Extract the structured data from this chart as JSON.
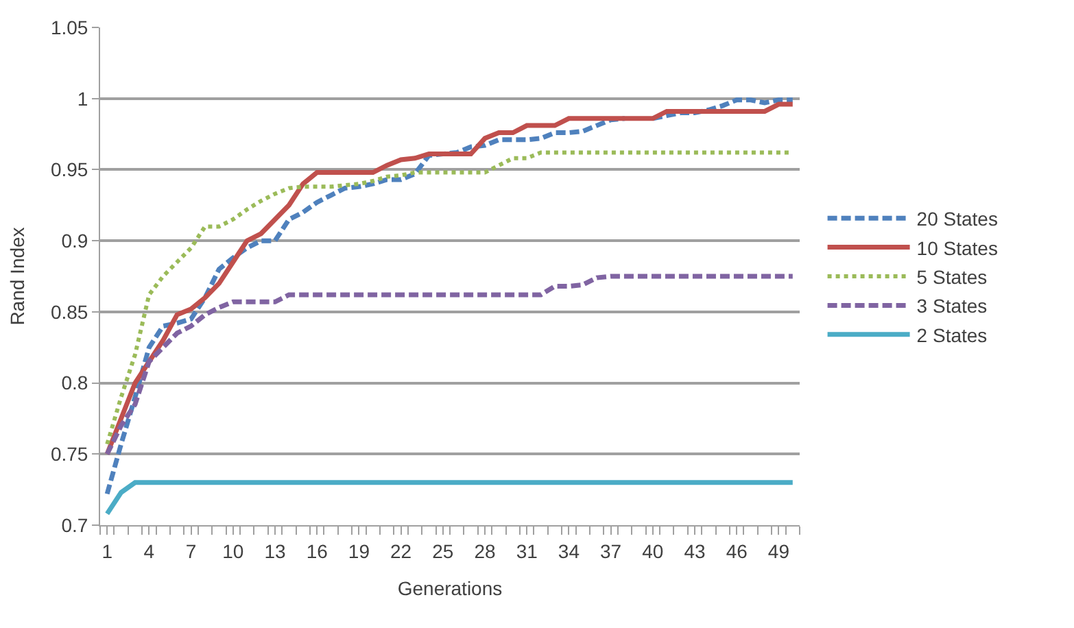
{
  "chart_data": {
    "type": "line",
    "xlabel": "Generations",
    "ylabel": "Rand Index",
    "categories": [
      "1",
      null,
      null,
      "4",
      null,
      null,
      "7",
      null,
      null,
      "10",
      null,
      null,
      "13",
      null,
      null,
      "16",
      null,
      null,
      "19",
      null,
      null,
      "22",
      null,
      null,
      "25",
      null,
      null,
      "28",
      null,
      null,
      "31",
      null,
      null,
      "34",
      null,
      null,
      "37",
      null,
      null,
      "40",
      null,
      null,
      "43",
      null,
      null,
      "46",
      null,
      null,
      "49",
      null
    ],
    "ylim": [
      0.7,
      1.05
    ],
    "yticks": [
      0.7,
      0.75,
      0.8,
      0.85,
      0.9,
      0.95,
      1,
      1.05
    ],
    "grid": "y",
    "legend": "right",
    "marker": "none",
    "series": [
      {
        "name": "20 States",
        "color": "#4f81bd",
        "line_style": "dashed",
        "values": [
          0.722,
          0.757,
          0.79,
          0.825,
          0.84,
          0.842,
          0.845,
          0.86,
          0.88,
          0.888,
          0.895,
          0.9,
          0.9,
          0.915,
          0.92,
          0.927,
          0.932,
          0.937,
          0.938,
          0.94,
          0.943,
          0.943,
          0.947,
          0.96,
          0.961,
          0.962,
          0.966,
          0.967,
          0.971,
          0.971,
          0.971,
          0.972,
          0.976,
          0.976,
          0.977,
          0.981,
          0.985,
          0.986,
          null,
          0.986,
          0.988,
          0.99,
          0.99,
          0.992,
          0.995,
          0.999,
          0.999,
          0.997,
          0.999,
          0.999
        ]
      },
      {
        "name": "10 States",
        "color": "#c0504d",
        "line_style": "solid",
        "values": [
          0.75,
          0.775,
          0.8,
          0.815,
          0.83,
          0.848,
          0.852,
          0.86,
          0.87,
          0.885,
          0.9,
          0.905,
          0.915,
          0.925,
          0.94,
          0.948,
          0.948,
          0.948,
          0.948,
          0.948,
          0.953,
          0.957,
          0.958,
          0.961,
          0.961,
          0.961,
          0.961,
          0.972,
          0.976,
          0.976,
          0.981,
          0.981,
          0.981,
          0.986,
          0.986,
          0.986,
          0.986,
          0.986,
          0.986,
          0.986,
          0.991,
          0.991,
          0.991,
          0.991,
          0.991,
          0.991,
          0.991,
          0.991,
          0.996,
          0.996
        ]
      },
      {
        "name": "5 States",
        "color": "#9bbb59",
        "line_style": "dotted",
        "values": [
          0.757,
          0.79,
          0.82,
          0.862,
          0.875,
          0.885,
          0.895,
          0.91,
          0.91,
          0.915,
          0.922,
          0.928,
          0.933,
          0.937,
          0.938,
          0.938,
          0.938,
          0.939,
          0.94,
          0.942,
          0.945,
          0.946,
          0.948,
          0.948,
          0.948,
          0.948,
          0.948,
          0.948,
          0.953,
          0.958,
          0.958,
          0.962,
          0.962,
          0.962,
          0.962,
          0.962,
          0.962,
          0.962,
          0.962,
          0.962,
          0.962,
          0.962,
          0.962,
          0.962,
          0.962,
          0.962,
          0.962,
          0.962,
          0.962,
          0.962
        ]
      },
      {
        "name": "3 States",
        "color": "#8064a2",
        "line_style": "dashed",
        "values": [
          0.75,
          0.77,
          0.785,
          0.815,
          0.825,
          0.835,
          0.84,
          0.848,
          0.853,
          0.857,
          0.857,
          0.857,
          0.857,
          0.862,
          0.862,
          0.862,
          0.862,
          0.862,
          0.862,
          0.862,
          0.862,
          0.862,
          0.862,
          0.862,
          0.862,
          0.862,
          0.862,
          0.862,
          0.862,
          0.862,
          0.862,
          0.862,
          0.868,
          0.868,
          0.869,
          0.874,
          0.875,
          0.875,
          0.875,
          0.875,
          0.875,
          0.875,
          0.875,
          0.875,
          0.875,
          0.875,
          0.875,
          0.875,
          0.875,
          0.875
        ]
      },
      {
        "name": "2 States",
        "color": "#4bacc6",
        "line_style": "solid",
        "values": [
          0.708,
          0.723,
          0.73,
          0.73,
          0.73,
          0.73,
          0.73,
          0.73,
          0.73,
          0.73,
          0.73,
          0.73,
          0.73,
          0.73,
          0.73,
          0.73,
          0.73,
          0.73,
          0.73,
          0.73,
          0.73,
          0.73,
          0.73,
          0.73,
          0.73,
          0.73,
          0.73,
          0.73,
          0.73,
          0.73,
          0.73,
          0.73,
          0.73,
          0.73,
          0.73,
          0.73,
          0.73,
          0.73,
          0.73,
          0.73,
          0.73,
          0.73,
          0.73,
          0.73,
          0.73,
          0.73,
          0.73,
          0.73,
          0.73,
          0.73
        ]
      }
    ]
  }
}
